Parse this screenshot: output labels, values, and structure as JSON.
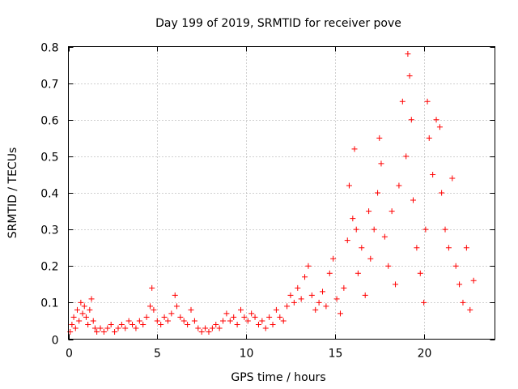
{
  "chart_data": {
    "type": "scatter",
    "title": "Day 199 of 2019, SRMTID for receiver pove",
    "xlabel": "GPS time / hours",
    "ylabel": "SRMTID / TECUs",
    "xlim": [
      0,
      24
    ],
    "ylim": [
      0,
      0.8
    ],
    "xticks": [
      0,
      5,
      10,
      15,
      20
    ],
    "yticks": [
      0,
      0.1,
      0.2,
      0.3,
      0.4,
      0.5,
      0.6,
      0.7,
      0.8
    ],
    "grid": true,
    "marker": "+",
    "series_color": "#ff0000",
    "series": [
      {
        "name": "SRMTID",
        "points": [
          [
            0.1,
            0.02
          ],
          [
            0.2,
            0.04
          ],
          [
            0.3,
            0.06
          ],
          [
            0.4,
            0.03
          ],
          [
            0.5,
            0.08
          ],
          [
            0.6,
            0.05
          ],
          [
            0.7,
            0.1
          ],
          [
            0.8,
            0.07
          ],
          [
            0.9,
            0.09
          ],
          [
            1.0,
            0.06
          ],
          [
            1.1,
            0.04
          ],
          [
            1.2,
            0.08
          ],
          [
            1.3,
            0.11
          ],
          [
            1.4,
            0.05
          ],
          [
            1.5,
            0.03
          ],
          [
            1.6,
            0.02
          ],
          [
            1.8,
            0.03
          ],
          [
            2.0,
            0.02
          ],
          [
            2.2,
            0.03
          ],
          [
            2.4,
            0.04
          ],
          [
            2.6,
            0.02
          ],
          [
            2.8,
            0.03
          ],
          [
            3.0,
            0.04
          ],
          [
            3.2,
            0.03
          ],
          [
            3.4,
            0.05
          ],
          [
            3.6,
            0.04
          ],
          [
            3.8,
            0.03
          ],
          [
            4.0,
            0.05
          ],
          [
            4.2,
            0.04
          ],
          [
            4.4,
            0.06
          ],
          [
            4.6,
            0.09
          ],
          [
            4.7,
            0.14
          ],
          [
            4.8,
            0.08
          ],
          [
            5.0,
            0.05
          ],
          [
            5.2,
            0.04
          ],
          [
            5.4,
            0.06
          ],
          [
            5.6,
            0.05
          ],
          [
            5.8,
            0.07
          ],
          [
            6.0,
            0.12
          ],
          [
            6.1,
            0.09
          ],
          [
            6.3,
            0.06
          ],
          [
            6.5,
            0.05
          ],
          [
            6.7,
            0.04
          ],
          [
            6.9,
            0.08
          ],
          [
            7.1,
            0.05
          ],
          [
            7.3,
            0.03
          ],
          [
            7.5,
            0.02
          ],
          [
            7.7,
            0.03
          ],
          [
            7.9,
            0.02
          ],
          [
            8.1,
            0.03
          ],
          [
            8.3,
            0.04
          ],
          [
            8.5,
            0.03
          ],
          [
            8.7,
            0.05
          ],
          [
            8.9,
            0.07
          ],
          [
            9.1,
            0.05
          ],
          [
            9.3,
            0.06
          ],
          [
            9.5,
            0.04
          ],
          [
            9.7,
            0.08
          ],
          [
            9.9,
            0.06
          ],
          [
            10.1,
            0.05
          ],
          [
            10.3,
            0.07
          ],
          [
            10.5,
            0.06
          ],
          [
            10.7,
            0.04
          ],
          [
            10.9,
            0.05
          ],
          [
            11.1,
            0.03
          ],
          [
            11.3,
            0.06
          ],
          [
            11.5,
            0.04
          ],
          [
            11.7,
            0.08
          ],
          [
            11.9,
            0.06
          ],
          [
            12.1,
            0.05
          ],
          [
            12.3,
            0.09
          ],
          [
            12.5,
            0.12
          ],
          [
            12.7,
            0.1
          ],
          [
            12.9,
            0.14
          ],
          [
            13.1,
            0.11
          ],
          [
            13.3,
            0.17
          ],
          [
            13.5,
            0.2
          ],
          [
            13.7,
            0.12
          ],
          [
            13.9,
            0.08
          ],
          [
            14.1,
            0.1
          ],
          [
            14.3,
            0.13
          ],
          [
            14.5,
            0.09
          ],
          [
            14.7,
            0.18
          ],
          [
            14.9,
            0.22
          ],
          [
            15.1,
            0.11
          ],
          [
            15.3,
            0.07
          ],
          [
            15.5,
            0.14
          ],
          [
            15.7,
            0.27
          ],
          [
            15.8,
            0.42
          ],
          [
            16.0,
            0.33
          ],
          [
            16.1,
            0.52
          ],
          [
            16.2,
            0.3
          ],
          [
            16.3,
            0.18
          ],
          [
            16.5,
            0.25
          ],
          [
            16.7,
            0.12
          ],
          [
            16.9,
            0.35
          ],
          [
            17.0,
            0.22
          ],
          [
            17.2,
            0.3
          ],
          [
            17.4,
            0.4
          ],
          [
            17.5,
            0.55
          ],
          [
            17.6,
            0.48
          ],
          [
            17.8,
            0.28
          ],
          [
            18.0,
            0.2
          ],
          [
            18.2,
            0.35
          ],
          [
            18.4,
            0.15
          ],
          [
            18.6,
            0.42
          ],
          [
            18.8,
            0.65
          ],
          [
            19.0,
            0.5
          ],
          [
            19.1,
            0.78
          ],
          [
            19.2,
            0.72
          ],
          [
            19.3,
            0.6
          ],
          [
            19.4,
            0.38
          ],
          [
            19.6,
            0.25
          ],
          [
            19.8,
            0.18
          ],
          [
            20.0,
            0.1
          ],
          [
            20.1,
            0.3
          ],
          [
            20.2,
            0.65
          ],
          [
            20.3,
            0.55
          ],
          [
            20.5,
            0.45
          ],
          [
            20.7,
            0.6
          ],
          [
            20.9,
            0.58
          ],
          [
            21.0,
            0.4
          ],
          [
            21.2,
            0.3
          ],
          [
            21.4,
            0.25
          ],
          [
            21.6,
            0.44
          ],
          [
            21.8,
            0.2
          ],
          [
            22.0,
            0.15
          ],
          [
            22.2,
            0.1
          ],
          [
            22.4,
            0.25
          ],
          [
            22.6,
            0.08
          ],
          [
            22.8,
            0.16
          ]
        ]
      }
    ]
  }
}
